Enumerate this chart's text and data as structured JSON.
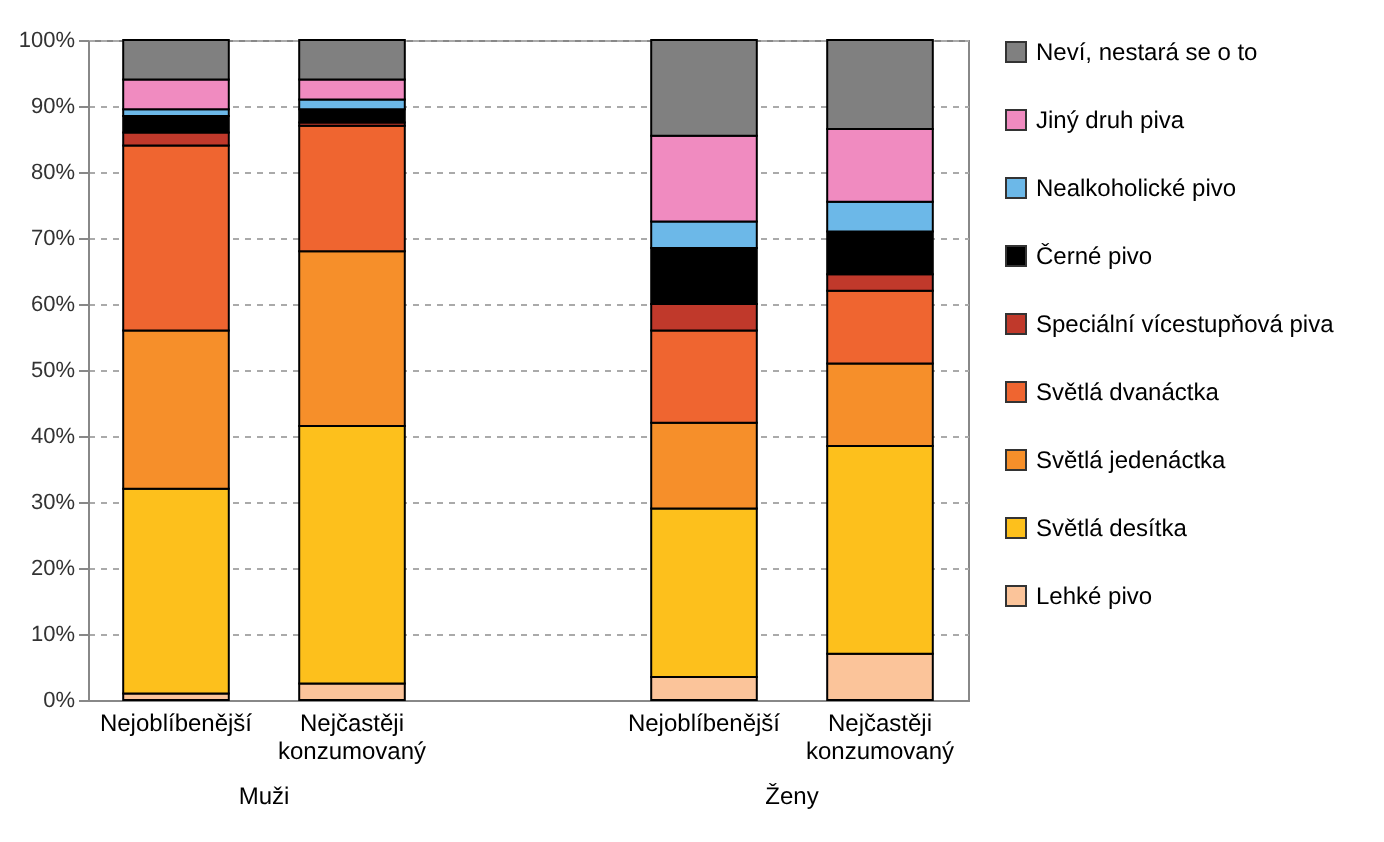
{
  "chart_data": {
    "type": "bar",
    "stacked": true,
    "categories": [
      "Nejoblíbenější",
      "Nejčastěji konzumovaný",
      null,
      "Nejoblíbenější",
      "Nejčastěji konzumovaný"
    ],
    "annotations": [
      "Muži",
      "Ženy"
    ],
    "ylim": [
      0,
      100
    ],
    "yticks": [
      {
        "value": 0,
        "label": "0%"
      },
      {
        "value": 10,
        "label": "10%"
      },
      {
        "value": 20,
        "label": "20%"
      },
      {
        "value": 30,
        "label": "30%"
      },
      {
        "value": 40,
        "label": "40%"
      },
      {
        "value": 50,
        "label": "50%"
      },
      {
        "value": 60,
        "label": "60%"
      },
      {
        "value": 70,
        "label": "70%"
      },
      {
        "value": 80,
        "label": "80%"
      },
      {
        "value": 90,
        "label": "90%"
      },
      {
        "value": 100,
        "label": "100%"
      }
    ],
    "grid": "y",
    "legend": "right",
    "series": [
      {
        "name": "Lehké pivo",
        "color": "#fbc49a",
        "values": [
          1,
          2.5,
          null,
          3.5,
          7
        ]
      },
      {
        "name": "Světlá desítka",
        "color": "#fdc01c",
        "values": [
          31,
          39,
          null,
          25.5,
          31.5
        ]
      },
      {
        "name": "Světlá jedenáctka",
        "color": "#f68f2a",
        "values": [
          24,
          26.5,
          null,
          13,
          12.5
        ]
      },
      {
        "name": "Světlá dvanáctka",
        "color": "#ef6530",
        "values": [
          28,
          19,
          null,
          14,
          11
        ]
      },
      {
        "name": "Speciální vícestupňová piva",
        "color": "#c0392b",
        "values": [
          2,
          0.5,
          null,
          4,
          2.5
        ]
      },
      {
        "name": "Černé pivo",
        "color": "#000000",
        "values": [
          2.5,
          2,
          null,
          8.5,
          6.5
        ]
      },
      {
        "name": "Nealkoholické pivo",
        "color": "#6cb8e8",
        "values": [
          1,
          1.5,
          null,
          4,
          4.5
        ]
      },
      {
        "name": "Jiný druh piva",
        "color": "#f08bc0",
        "values": [
          4.5,
          3,
          null,
          13,
          11
        ]
      },
      {
        "name": "Neví, nestará se o to",
        "color": "#808080",
        "values": [
          6,
          6,
          null,
          14.5,
          13.5
        ]
      }
    ]
  }
}
